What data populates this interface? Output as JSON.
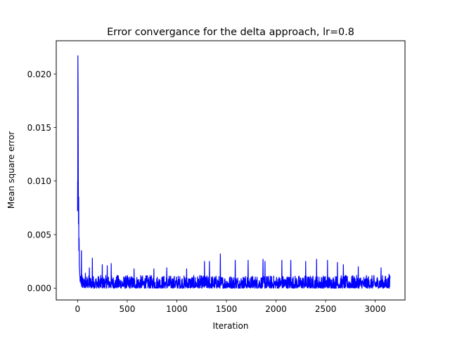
{
  "chart_data": {
    "type": "line",
    "title": "Error convergance for the delta approach, lr=0.8",
    "xlabel": "Iteration",
    "ylabel": "Mean square error",
    "xlim": [
      -215,
      3300
    ],
    "ylim": [
      -0.0011,
      0.0231
    ],
    "xticks": [
      0,
      500,
      1000,
      1500,
      2000,
      2500,
      3000
    ],
    "xtick_labels": [
      "0",
      "500",
      "1000",
      "1500",
      "2000",
      "2500",
      "3000"
    ],
    "yticks": [
      0.0,
      0.005,
      0.01,
      0.015,
      0.02
    ],
    "ytick_labels": [
      "0.000",
      "0.005",
      "0.010",
      "0.015",
      "0.020"
    ],
    "grid": false,
    "legend": "none",
    "series": [
      {
        "color": "#0000ff",
        "x_range": [
          0,
          3150
        ],
        "initial_points": [
          {
            "x": 0,
            "y": 0.0072
          },
          {
            "x": 1,
            "y": 0.01
          },
          {
            "x": 2,
            "y": 0.0085
          },
          {
            "x": 3,
            "y": 0.0217
          },
          {
            "x": 5,
            "y": 0.019
          },
          {
            "x": 7,
            "y": 0.011
          },
          {
            "x": 9,
            "y": 0.006
          },
          {
            "x": 11,
            "y": 0.0085
          },
          {
            "x": 13,
            "y": 0.0035
          },
          {
            "x": 15,
            "y": 0.0047
          },
          {
            "x": 18,
            "y": 0.002
          },
          {
            "x": 22,
            "y": 0.0014
          },
          {
            "x": 26,
            "y": 0.0006
          },
          {
            "x": 30,
            "y": 0.0011
          },
          {
            "x": 35,
            "y": 0.0004
          }
        ],
        "steady_state_range": [
          0.0,
          0.0012
        ],
        "peaks": [
          {
            "x": 40,
            "y": 0.0035
          },
          {
            "x": 80,
            "y": 0.0014
          },
          {
            "x": 120,
            "y": 0.0019
          },
          {
            "x": 150,
            "y": 0.0028
          },
          {
            "x": 250,
            "y": 0.0022
          },
          {
            "x": 300,
            "y": 0.0021
          },
          {
            "x": 340,
            "y": 0.0023
          },
          {
            "x": 400,
            "y": 0.0012
          },
          {
            "x": 570,
            "y": 0.0018
          },
          {
            "x": 770,
            "y": 0.0018
          },
          {
            "x": 900,
            "y": 0.0019
          },
          {
            "x": 1100,
            "y": 0.0018
          },
          {
            "x": 1280,
            "y": 0.0025
          },
          {
            "x": 1330,
            "y": 0.0025
          },
          {
            "x": 1440,
            "y": 0.0032
          },
          {
            "x": 1590,
            "y": 0.0026
          },
          {
            "x": 1720,
            "y": 0.0026
          },
          {
            "x": 1870,
            "y": 0.0027
          },
          {
            "x": 1890,
            "y": 0.0025
          },
          {
            "x": 2060,
            "y": 0.0026
          },
          {
            "x": 2150,
            "y": 0.0026
          },
          {
            "x": 2300,
            "y": 0.0025
          },
          {
            "x": 2410,
            "y": 0.0027
          },
          {
            "x": 2520,
            "y": 0.0026
          },
          {
            "x": 2620,
            "y": 0.0024
          },
          {
            "x": 2680,
            "y": 0.0022
          },
          {
            "x": 2830,
            "y": 0.002
          },
          {
            "x": 3060,
            "y": 0.0019
          },
          {
            "x": 3140,
            "y": 0.0013
          }
        ]
      }
    ]
  }
}
